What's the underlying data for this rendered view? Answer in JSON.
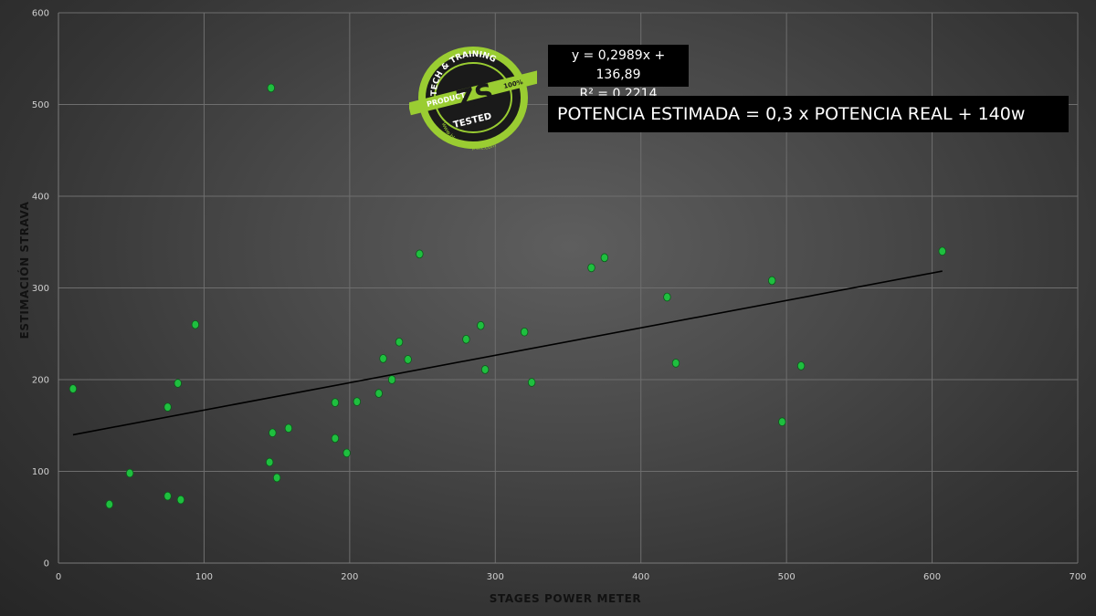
{
  "chart_data": {
    "type": "scatter",
    "xlabel": "STAGES POWER METER",
    "ylabel": "ESTIMACIÓN STRAVA",
    "xlim": [
      0,
      700
    ],
    "ylim": [
      0,
      600
    ],
    "xticks": [
      "0",
      "100",
      "200",
      "300",
      "400",
      "500",
      "600",
      "700"
    ],
    "yticks": [
      "0",
      "100",
      "200",
      "300",
      "400",
      "500",
      "600"
    ],
    "grid": true,
    "points": [
      {
        "x": 10,
        "y": 190
      },
      {
        "x": 35,
        "y": 64
      },
      {
        "x": 49,
        "y": 98
      },
      {
        "x": 75,
        "y": 73
      },
      {
        "x": 75,
        "y": 170
      },
      {
        "x": 82,
        "y": 196
      },
      {
        "x": 84,
        "y": 69
      },
      {
        "x": 94,
        "y": 260
      },
      {
        "x": 145,
        "y": 110
      },
      {
        "x": 146,
        "y": 518
      },
      {
        "x": 147,
        "y": 142
      },
      {
        "x": 150,
        "y": 93
      },
      {
        "x": 158,
        "y": 147
      },
      {
        "x": 190,
        "y": 136
      },
      {
        "x": 190,
        "y": 175
      },
      {
        "x": 198,
        "y": 120
      },
      {
        "x": 205,
        "y": 176
      },
      {
        "x": 220,
        "y": 185
      },
      {
        "x": 223,
        "y": 223
      },
      {
        "x": 229,
        "y": 200
      },
      {
        "x": 234,
        "y": 241
      },
      {
        "x": 240,
        "y": 222
      },
      {
        "x": 248,
        "y": 337
      },
      {
        "x": 280,
        "y": 244
      },
      {
        "x": 290,
        "y": 259
      },
      {
        "x": 293,
        "y": 211
      },
      {
        "x": 320,
        "y": 252
      },
      {
        "x": 325,
        "y": 197
      },
      {
        "x": 366,
        "y": 322
      },
      {
        "x": 375,
        "y": 333
      },
      {
        "x": 418,
        "y": 290
      },
      {
        "x": 424,
        "y": 218
      },
      {
        "x": 490,
        "y": 308
      },
      {
        "x": 497,
        "y": 154
      },
      {
        "x": 510,
        "y": 215
      },
      {
        "x": 607,
        "y": 340
      }
    ],
    "trendline": {
      "slope": 0.2989,
      "intercept": 136.89,
      "x_range": [
        10,
        607
      ]
    },
    "equation": {
      "line1": "y = 0,2989x + 136,89",
      "line2": "R² = 0,2214"
    },
    "annotation": "POTENCIA ESTIMADA = 0,3 x POTENCIA REAL + 140w",
    "colors": {
      "point": "#1fbf3f",
      "grid": "#6e6e6e",
      "trend": "#000000",
      "box": "#000000"
    }
  },
  "logo": {
    "top_text": "TECH & TRAINING",
    "center_text": "ZS",
    "left_text": "PRODUCT",
    "right_text": "100%",
    "bottom_text": "TESTED",
    "url_text": "www.blog.zitaSport.com",
    "ring_color": "#9acd32"
  }
}
